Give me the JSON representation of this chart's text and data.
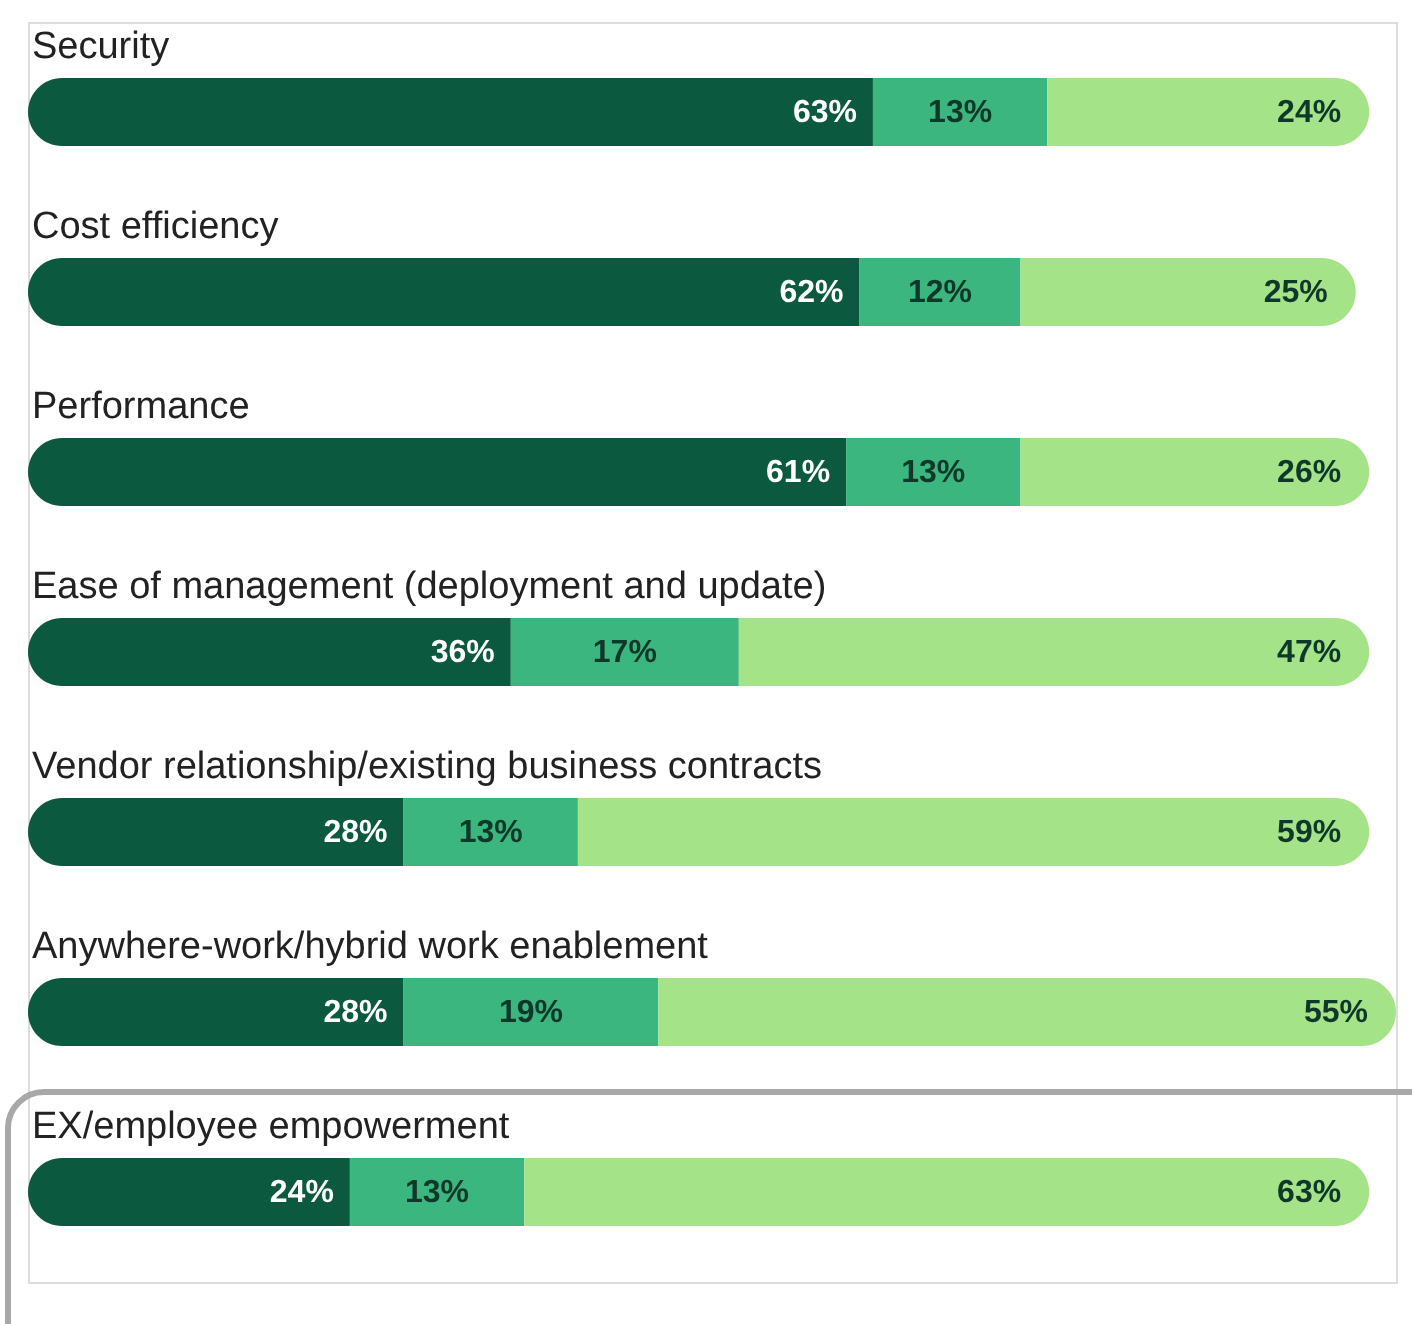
{
  "chart_data": {
    "type": "bar",
    "orientation": "horizontal",
    "stacked": true,
    "categories": [
      "Security",
      "Cost efficiency",
      "Performance",
      "Ease of management (deployment and update)",
      "Vendor relationship/existing business contracts",
      "Anywhere-work/hybrid work enablement",
      "EX/employee empowerment"
    ],
    "series": [
      {
        "color": "#0b5a3f",
        "values": [
          63,
          62,
          61,
          36,
          28,
          28,
          24
        ],
        "value_labels": [
          "63%",
          "62%",
          "61%",
          "36%",
          "28%",
          "28%",
          "24%"
        ]
      },
      {
        "color": "#3cb67f",
        "values": [
          13,
          12,
          13,
          17,
          13,
          19,
          13
        ],
        "value_labels": [
          "13%",
          "12%",
          "13%",
          "17%",
          "13%",
          "19%",
          "13%"
        ]
      },
      {
        "color": "#a5e388",
        "values": [
          24,
          25,
          26,
          47,
          59,
          55,
          63
        ],
        "value_labels": [
          "24%",
          "25%",
          "26%",
          "47%",
          "59%",
          "55%",
          "63%"
        ]
      }
    ],
    "xlim": [
      0,
      102
    ],
    "tick_labels": "y"
  }
}
